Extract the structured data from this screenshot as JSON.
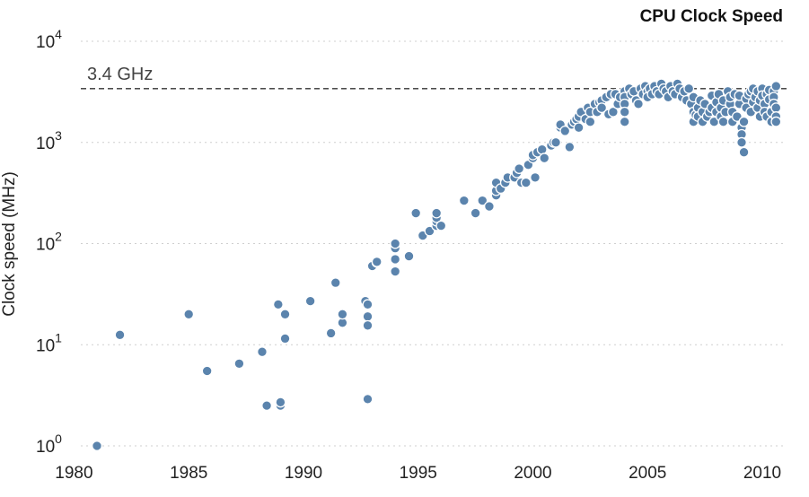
{
  "chart_data": {
    "type": "scatter",
    "title": "CPU Clock Speed",
    "xlabel": "",
    "ylabel": "Clock speed (MHz)",
    "x_scale": "linear",
    "y_scale": "log",
    "xlim": [
      1980,
      2010.8
    ],
    "ylim": [
      1,
      10000
    ],
    "x_ticks": [
      {
        "value": 1980,
        "label": "1980"
      },
      {
        "value": 1985,
        "label": "1985"
      },
      {
        "value": 1990,
        "label": "1990"
      },
      {
        "value": 1995,
        "label": "1995"
      },
      {
        "value": 2000,
        "label": "2000"
      },
      {
        "value": 2005,
        "label": "2005"
      },
      {
        "value": 2010,
        "label": "2010"
      }
    ],
    "y_ticks": [
      {
        "value": 1,
        "base": "10",
        "exp": "0"
      },
      {
        "value": 10,
        "base": "10",
        "exp": "1"
      },
      {
        "value": 100,
        "base": "10",
        "exp": "2"
      },
      {
        "value": 1000,
        "base": "10",
        "exp": "3"
      },
      {
        "value": 10000,
        "base": "10",
        "exp": "4"
      }
    ],
    "grid": "horizontal dotted",
    "reference_line": {
      "value": 3400,
      "label": "3.4 GHz"
    },
    "marker_color": "#5b84ad",
    "points": [
      [
        1981.0,
        1.0
      ],
      [
        1982.0,
        12.5
      ],
      [
        1985.0,
        20
      ],
      [
        1985.8,
        5.5
      ],
      [
        1987.2,
        6.5
      ],
      [
        1988.2,
        8.5
      ],
      [
        1988.4,
        2.5
      ],
      [
        1988.9,
        25
      ],
      [
        1989.0,
        2.5
      ],
      [
        1989.0,
        2.7
      ],
      [
        1989.2,
        20
      ],
      [
        1989.2,
        11.5
      ],
      [
        1990.3,
        27
      ],
      [
        1991.2,
        13
      ],
      [
        1991.4,
        41
      ],
      [
        1991.7,
        16.5
      ],
      [
        1991.7,
        20
      ],
      [
        1992.7,
        27
      ],
      [
        1992.8,
        25
      ],
      [
        1992.8,
        19
      ],
      [
        1992.8,
        15.5
      ],
      [
        1992.8,
        2.9
      ],
      [
        1993.0,
        60
      ],
      [
        1993.2,
        65
      ],
      [
        1993.2,
        66
      ],
      [
        1994.0,
        53
      ],
      [
        1994.0,
        70
      ],
      [
        1994.0,
        90
      ],
      [
        1994.0,
        100
      ],
      [
        1994.6,
        75
      ],
      [
        1994.9,
        200
      ],
      [
        1995.2,
        120
      ],
      [
        1995.5,
        133
      ],
      [
        1995.8,
        150
      ],
      [
        1995.8,
        166
      ],
      [
        1995.8,
        180
      ],
      [
        1995.8,
        200
      ],
      [
        1996.0,
        150
      ],
      [
        1997.0,
        266
      ],
      [
        1997.5,
        200
      ],
      [
        1997.8,
        266
      ],
      [
        1998.1,
        233
      ],
      [
        1998.4,
        300
      ],
      [
        1998.4,
        333
      ],
      [
        1998.4,
        400
      ],
      [
        1998.6,
        350
      ],
      [
        1998.8,
        400
      ],
      [
        1998.9,
        450
      ],
      [
        1999.2,
        450
      ],
      [
        1999.3,
        500
      ],
      [
        1999.4,
        550
      ],
      [
        1999.5,
        400
      ],
      [
        1999.7,
        400
      ],
      [
        1999.8,
        600
      ],
      [
        2000.0,
        700
      ],
      [
        2000.0,
        750
      ],
      [
        2000.1,
        450
      ],
      [
        2000.2,
        800
      ],
      [
        2000.4,
        850
      ],
      [
        2000.5,
        700
      ],
      [
        2000.8,
        933
      ],
      [
        2000.9,
        1000
      ],
      [
        2001.0,
        1000
      ],
      [
        2001.2,
        1400
      ],
      [
        2001.2,
        1500
      ],
      [
        2001.4,
        1300
      ],
      [
        2001.6,
        900
      ],
      [
        2001.7,
        1500
      ],
      [
        2001.8,
        1600
      ],
      [
        2001.9,
        1700
      ],
      [
        2002.0,
        1800
      ],
      [
        2002.0,
        1400
      ],
      [
        2002.1,
        2000
      ],
      [
        2002.3,
        1700
      ],
      [
        2002.4,
        2200
      ],
      [
        2002.5,
        2000
      ],
      [
        2002.5,
        1600
      ],
      [
        2002.7,
        2400
      ],
      [
        2002.8,
        2000
      ],
      [
        2002.9,
        2500
      ],
      [
        2003.0,
        2600
      ],
      [
        2003.0,
        2200
      ],
      [
        2003.2,
        2800
      ],
      [
        2003.3,
        1900
      ],
      [
        2003.4,
        3000
      ],
      [
        2003.5,
        2000
      ],
      [
        2003.6,
        3000
      ],
      [
        2003.7,
        2400
      ],
      [
        2003.8,
        2800
      ],
      [
        2004.0,
        3200
      ],
      [
        2004.0,
        2800
      ],
      [
        2004.0,
        2400
      ],
      [
        2004.0,
        2000
      ],
      [
        2004.0,
        1600
      ],
      [
        2004.2,
        3400
      ],
      [
        2004.3,
        3000
      ],
      [
        2004.4,
        3200
      ],
      [
        2004.5,
        2600
      ],
      [
        2004.6,
        2400
      ],
      [
        2004.7,
        3400
      ],
      [
        2004.8,
        3000
      ],
      [
        2004.9,
        3600
      ],
      [
        2005.0,
        3200
      ],
      [
        2005.0,
        2800
      ],
      [
        2005.1,
        3400
      ],
      [
        2005.2,
        3000
      ],
      [
        2005.3,
        3600
      ],
      [
        2005.4,
        3200
      ],
      [
        2005.5,
        3000
      ],
      [
        2005.6,
        3800
      ],
      [
        2005.7,
        3400
      ],
      [
        2005.8,
        3200
      ],
      [
        2005.9,
        2800
      ],
      [
        2006.0,
        3600
      ],
      [
        2006.1,
        3200
      ],
      [
        2006.2,
        3000
      ],
      [
        2006.3,
        3800
      ],
      [
        2006.4,
        3400
      ],
      [
        2006.5,
        2800
      ],
      [
        2006.6,
        3200
      ],
      [
        2006.7,
        2600
      ],
      [
        2006.8,
        3400
      ],
      [
        2006.9,
        2400
      ],
      [
        2007.0,
        2000
      ],
      [
        2007.0,
        1600
      ],
      [
        2007.0,
        2800
      ],
      [
        2007.1,
        1866
      ],
      [
        2007.2,
        2200
      ],
      [
        2007.2,
        1800
      ],
      [
        2007.3,
        2600
      ],
      [
        2007.4,
        2000
      ],
      [
        2007.4,
        1600
      ],
      [
        2007.5,
        2400
      ],
      [
        2007.6,
        1800
      ],
      [
        2007.7,
        2000
      ],
      [
        2007.8,
        2900
      ],
      [
        2007.8,
        2200
      ],
      [
        2007.9,
        1600
      ],
      [
        2008.0,
        2500
      ],
      [
        2008.0,
        2000
      ],
      [
        2008.1,
        3000
      ],
      [
        2008.2,
        2200
      ],
      [
        2008.2,
        1800
      ],
      [
        2008.3,
        1600
      ],
      [
        2008.3,
        2600
      ],
      [
        2008.4,
        2000
      ],
      [
        2008.5,
        3200
      ],
      [
        2008.6,
        2400
      ],
      [
        2008.6,
        2800
      ],
      [
        2008.7,
        2000
      ],
      [
        2008.7,
        1600
      ],
      [
        2008.8,
        3000
      ],
      [
        2008.9,
        1800
      ],
      [
        2009.0,
        2400
      ],
      [
        2009.0,
        2900
      ],
      [
        2009.1,
        1400
      ],
      [
        2009.1,
        1200
      ],
      [
        2009.1,
        1000
      ],
      [
        2009.2,
        800
      ],
      [
        2009.2,
        1600
      ],
      [
        2009.3,
        2700
      ],
      [
        2009.3,
        2200
      ],
      [
        2009.4,
        3000
      ],
      [
        2009.5,
        2000
      ],
      [
        2009.5,
        3200
      ],
      [
        2009.6,
        2500
      ],
      [
        2009.6,
        3400
      ],
      [
        2009.7,
        2800
      ],
      [
        2009.8,
        3200
      ],
      [
        2009.8,
        2200
      ],
      [
        2009.9,
        1800
      ],
      [
        2009.9,
        2600
      ],
      [
        2010.0,
        3400
      ],
      [
        2010.0,
        2900
      ],
      [
        2010.1,
        2400
      ],
      [
        2010.1,
        2000
      ],
      [
        2010.2,
        3000
      ],
      [
        2010.2,
        1800
      ],
      [
        2010.3,
        2660
      ],
      [
        2010.3,
        3300
      ],
      [
        2010.4,
        2000
      ],
      [
        2010.4,
        1600
      ],
      [
        2010.5,
        3200
      ],
      [
        2010.5,
        2800
      ],
      [
        2010.5,
        2400
      ],
      [
        2010.6,
        3600
      ],
      [
        2010.6,
        2200
      ],
      [
        2010.6,
        1800
      ],
      [
        2010.6,
        1600
      ]
    ]
  }
}
